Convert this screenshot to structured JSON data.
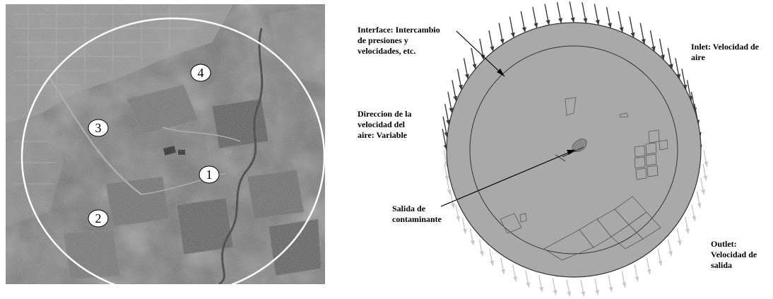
{
  "colors": {
    "aerial_base": "#5f5f5f",
    "domain_fill": "#a9a9a9",
    "inlet_arrow": "#3a3a3a",
    "outlet_arrow": "#c8c8c8",
    "white_ring": "#ffffff"
  },
  "aerial": {
    "markers": [
      "1",
      "2",
      "3",
      "4"
    ]
  },
  "domain": {
    "labels": {
      "interface_line1": "Interface: Intercambio",
      "interface_line2": "de presiones y",
      "interface_line3": "velocidades, etc.",
      "inlet_line1": "Inlet: Velocidad de",
      "inlet_line2": "aire",
      "direction_line1": "Direccion de la",
      "direction_line2": "velocidad del",
      "direction_line3": "aire: Variable",
      "source_line1": "Salida de",
      "source_line2": "contaminante",
      "outlet_line1": "Outlet:",
      "outlet_line2": "Velocidad de",
      "outlet_line3": "salida"
    }
  }
}
